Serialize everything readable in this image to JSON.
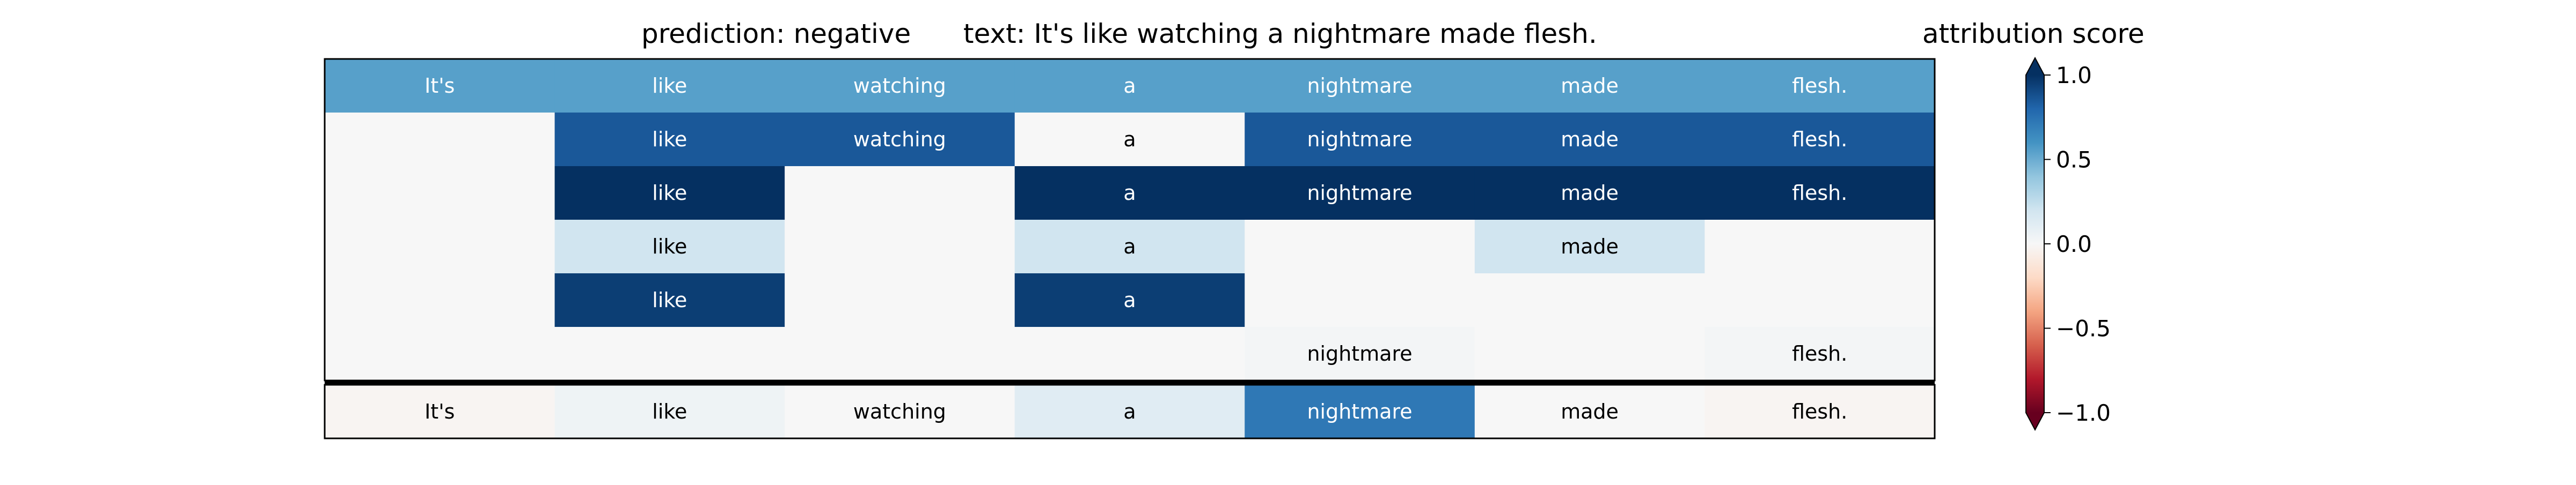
{
  "chart_data": {
    "type": "heatmap",
    "title_prediction": "prediction:  negative",
    "title_text": "text:  It's like watching a nightmare made flesh.",
    "tokens": [
      "It's",
      "like",
      "watching",
      "a",
      "nightmare",
      "made",
      "flesh."
    ],
    "upper_rows": [
      [
        0.55,
        0.55,
        0.55,
        0.55,
        0.55,
        0.55,
        0.55
      ],
      [
        0.0,
        0.85,
        0.85,
        0.0,
        0.85,
        0.85,
        0.85
      ],
      [
        0.0,
        1.0,
        0.0,
        1.0,
        1.0,
        1.0,
        1.0
      ],
      [
        0.0,
        0.2,
        0.0,
        0.2,
        0.0,
        0.2,
        0.0
      ],
      [
        0.0,
        0.95,
        0.0,
        0.95,
        0.0,
        0.0,
        0.0
      ],
      [
        0.0,
        0.0,
        0.0,
        0.0,
        0.02,
        0.0,
        0.02
      ]
    ],
    "upper_labels_visible": [
      [
        true,
        true,
        true,
        true,
        true,
        true,
        true
      ],
      [
        false,
        true,
        true,
        true,
        true,
        true,
        true
      ],
      [
        false,
        true,
        false,
        true,
        true,
        true,
        true
      ],
      [
        false,
        true,
        false,
        true,
        false,
        true,
        false
      ],
      [
        false,
        true,
        false,
        true,
        false,
        false,
        false
      ],
      [
        false,
        false,
        false,
        false,
        true,
        false,
        true
      ]
    ],
    "bottom_row": [
      -0.02,
      0.05,
      0.0,
      0.12,
      0.72,
      0.0,
      -0.02
    ],
    "colorbar": {
      "label": "attribution score",
      "range": [
        -1.0,
        1.0
      ],
      "ticks": [
        "1.0",
        "0.5",
        "0.0",
        "−0.5",
        "−1.0"
      ],
      "tick_values": [
        1.0,
        0.5,
        0.0,
        -0.5,
        -1.0
      ],
      "colormap": "RdBu"
    }
  }
}
